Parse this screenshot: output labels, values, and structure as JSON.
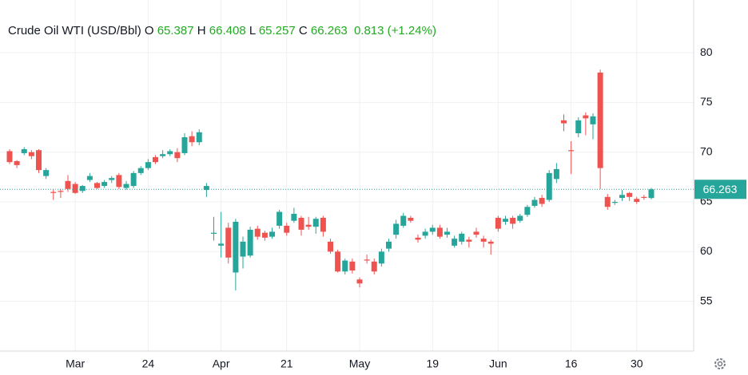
{
  "chart_data": {
    "type": "candlestick",
    "title": "Crude Oil WTI (USD/Bbl)",
    "ohlc_labels": [
      "O",
      "H",
      "L",
      "C"
    ],
    "change": 0.813,
    "change_percent_label": "(+1.24%)",
    "up_color": "#26a69a",
    "down_color": "#ef5350",
    "categories": [
      null,
      null,
      null,
      null,
      null,
      null,
      null,
      null,
      null,
      "Mar",
      null,
      null,
      null,
      null,
      null,
      null,
      null,
      null,
      null,
      "24",
      null,
      null,
      null,
      null,
      null,
      null,
      null,
      null,
      null,
      "Apr",
      null,
      null,
      null,
      null,
      null,
      null,
      null,
      null,
      "21",
      null,
      null,
      null,
      null,
      null,
      null,
      null,
      null,
      null,
      "May",
      null,
      null,
      null,
      null,
      null,
      null,
      null,
      null,
      null,
      "19",
      null,
      null,
      null,
      null,
      null,
      null,
      null,
      null,
      "Jun",
      null,
      null,
      null,
      null,
      null,
      null,
      null,
      null,
      null,
      "16",
      null,
      null,
      null,
      null,
      null,
      null,
      null,
      null,
      "30",
      null,
      null
    ],
    "open": [
      70.1,
      69.1,
      69.9,
      70.0,
      70.2,
      67.6,
      66.0,
      66.1,
      67.1,
      66.8,
      66.1,
      67.2,
      66.9,
      66.6,
      67.2,
      67.7,
      66.4,
      66.6,
      67.9,
      68.4,
      69.5,
      69.6,
      69.8,
      70.0,
      69.9,
      71.6,
      71.0,
      66.2,
      61.8,
      60.6,
      62.4,
      57.9,
      59.5,
      59.6,
      62.3,
      61.9,
      61.5,
      62.6,
      62.6,
      63.1,
      63.4,
      62.7,
      62.5,
      63.4,
      61.0,
      60.0,
      58.0,
      59.0,
      57.2,
      59.2,
      59.0,
      58.8,
      60.3,
      61.7,
      62.6,
      63.4,
      61.4,
      61.6,
      62.0,
      62.4,
      61.7,
      60.6,
      61.0,
      61.2,
      62.0,
      61.3,
      61.0,
      63.4,
      63.0,
      63.4,
      63.1,
      63.7,
      64.6,
      65.4,
      65.2,
      67.3,
      73.2,
      70.2,
      71.9,
      73.7,
      72.8,
      78.0,
      65.5,
      64.9,
      65.4,
      65.9,
      65.3,
      65.5,
      65.387
    ],
    "high": [
      70.3,
      69.2,
      70.5,
      70.2,
      70.3,
      68.4,
      66.3,
      66.3,
      67.7,
      67.0,
      66.7,
      67.9,
      67.0,
      67.2,
      67.6,
      67.9,
      67.1,
      68.1,
      68.6,
      69.3,
      69.7,
      70.2,
      70.3,
      70.4,
      71.9,
      72.1,
      72.3,
      66.9,
      63.5,
      64.0,
      62.9,
      63.3,
      61.5,
      62.5,
      62.6,
      62.1,
      62.4,
      64.2,
      62.9,
      64.4,
      63.6,
      63.5,
      63.5,
      63.6,
      61.3,
      60.2,
      59.3,
      59.3,
      57.4,
      59.7,
      59.3,
      60.3,
      61.3,
      63.2,
      63.9,
      63.6,
      61.7,
      62.3,
      62.7,
      62.7,
      62.4,
      61.6,
      62.0,
      61.5,
      62.4,
      61.6,
      61.2,
      63.6,
      63.6,
      63.6,
      63.8,
      64.7,
      65.5,
      65.7,
      68.2,
      68.9,
      73.8,
      71.1,
      73.5,
      74.0,
      73.9,
      78.3,
      65.8,
      65.2,
      66.2,
      66.0,
      65.5,
      65.7,
      66.408
    ],
    "low": [
      68.8,
      68.4,
      69.7,
      69.3,
      67.9,
      67.3,
      65.2,
      65.4,
      66.0,
      65.8,
      65.9,
      67.0,
      66.3,
      66.4,
      66.9,
      66.3,
      66.2,
      66.4,
      67.7,
      68.2,
      68.8,
      69.4,
      69.6,
      69.0,
      69.7,
      70.6,
      70.7,
      65.5,
      61.1,
      59.4,
      58.8,
      56.1,
      58.3,
      59.4,
      61.2,
      61.1,
      61.3,
      62.3,
      61.6,
      62.9,
      61.6,
      62.2,
      61.8,
      61.5,
      59.8,
      57.9,
      57.7,
      57.8,
      56.4,
      58.8,
      57.7,
      58.5,
      60.0,
      61.3,
      62.4,
      62.9,
      60.9,
      61.3,
      61.7,
      61.3,
      61.4,
      60.4,
      60.7,
      60.4,
      61.4,
      60.4,
      59.7,
      62.0,
      62.7,
      62.3,
      62.9,
      63.5,
      64.4,
      64.5,
      65.0,
      66.9,
      72.1,
      67.8,
      71.5,
      71.7,
      71.3,
      66.3,
      64.2,
      64.7,
      65.1,
      65.1,
      64.8,
      65.2,
      65.257
    ],
    "close": [
      69.0,
      68.7,
      70.3,
      69.6,
      68.2,
      68.2,
      65.9,
      66.0,
      66.3,
      65.9,
      66.6,
      67.6,
      66.4,
      67.0,
      67.4,
      66.5,
      66.8,
      67.9,
      68.4,
      69.0,
      69.0,
      69.8,
      70.1,
      69.4,
      71.5,
      71.0,
      72.0,
      66.6,
      61.9,
      60.8,
      59.4,
      63.0,
      61.0,
      62.2,
      61.5,
      61.4,
      62.0,
      64.0,
      61.9,
      63.8,
      62.2,
      62.5,
      63.3,
      62.0,
      60.0,
      58.0,
      59.1,
      58.1,
      56.8,
      59.1,
      58.0,
      60.0,
      61.0,
      62.8,
      63.6,
      63.1,
      61.2,
      62.0,
      62.4,
      61.5,
      62.0,
      61.3,
      61.8,
      61.0,
      61.7,
      61.0,
      60.8,
      62.3,
      63.3,
      62.8,
      63.6,
      64.5,
      65.2,
      64.8,
      67.9,
      68.3,
      72.9,
      70.1,
      73.2,
      73.4,
      73.6,
      68.4,
      64.5,
      65.0,
      65.7,
      65.5,
      65.0,
      65.4,
      66.263
    ],
    "ylim": [
      50,
      85.3
    ],
    "yticks": [
      55,
      60,
      65,
      70,
      75,
      80
    ],
    "grid": true
  }
}
